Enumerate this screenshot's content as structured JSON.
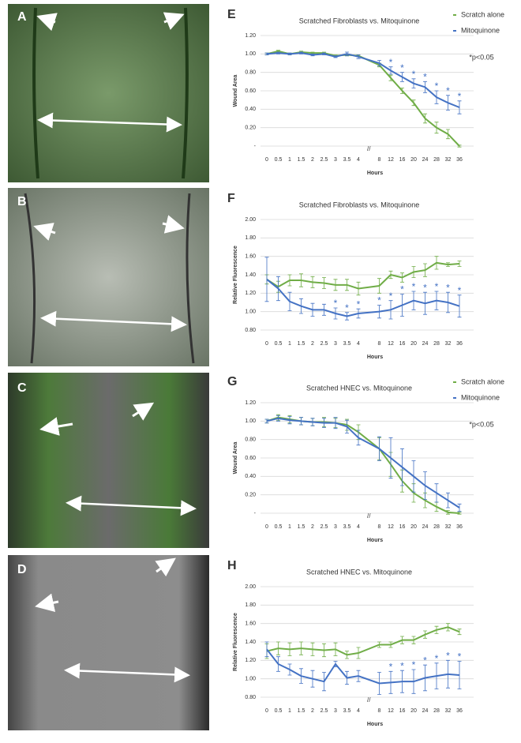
{
  "images": [
    {
      "label": "A"
    },
    {
      "label": "B"
    },
    {
      "label": "C"
    },
    {
      "label": "D"
    }
  ],
  "chart_data": [
    {
      "type": "line",
      "panel": "E",
      "title": "Scratched Fibroblasts vs. Mitoquinone",
      "xlabel": "Hours",
      "ylabel": "Wound Area",
      "axis_break": "//",
      "note": "*p<0.05",
      "legend": true,
      "grid": true,
      "significance_marker": "*",
      "categories": [
        "0",
        "0.5",
        "1",
        "1.5",
        "2",
        "2.5",
        "3",
        "3.5",
        "4",
        "8",
        "12",
        "16",
        "20",
        "24",
        "28",
        "32",
        "36"
      ],
      "ylim": [
        0,
        1.2
      ],
      "yticks": [
        {
          "value": 0,
          "label": "-"
        },
        {
          "value": 0.2,
          "label": "0.20"
        },
        {
          "value": 0.4,
          "label": "0.40"
        },
        {
          "value": 0.6,
          "label": "0.60"
        },
        {
          "value": 0.8,
          "label": "0.80"
        },
        {
          "value": 1,
          "label": "1.00"
        },
        {
          "value": 1.2,
          "label": "1.20"
        }
      ],
      "series": [
        {
          "name": "Scratch alone",
          "color": "#70ad47",
          "values": [
            1.0,
            1.03,
            1.0,
            1.02,
            1.01,
            1.01,
            0.98,
            0.99,
            0.98,
            0.88,
            0.74,
            0.6,
            0.47,
            0.3,
            0.2,
            0.13,
            0.0
          ],
          "errors": [
            0.01,
            0.01,
            0.01,
            0.01,
            0.01,
            0.01,
            0.01,
            0.01,
            0.01,
            0.02,
            0.03,
            0.03,
            0.03,
            0.05,
            0.06,
            0.05,
            0.01
          ]
        },
        {
          "name": "Mitoquinone",
          "color": "#4472c4",
          "values": [
            1.0,
            1.01,
            1.0,
            1.01,
            0.99,
            1.0,
            0.97,
            1.0,
            0.97,
            0.9,
            0.82,
            0.75,
            0.68,
            0.64,
            0.53,
            0.47,
            0.42
          ],
          "errors": [
            0.01,
            0.01,
            0.01,
            0.01,
            0.01,
            0.01,
            0.01,
            0.02,
            0.02,
            0.03,
            0.04,
            0.05,
            0.05,
            0.06,
            0.07,
            0.08,
            0.07
          ],
          "significant": [
            false,
            false,
            false,
            false,
            false,
            false,
            false,
            false,
            false,
            false,
            true,
            true,
            true,
            true,
            true,
            true,
            true
          ]
        }
      ]
    },
    {
      "type": "line",
      "panel": "F",
      "title": "Scratched Fibroblasts vs. Mitoquinone",
      "xlabel": "Hours",
      "ylabel": "Relative Fluorescence",
      "legend": false,
      "grid": true,
      "significance_marker": "*",
      "categories": [
        "0",
        "0.5",
        "1",
        "1.5",
        "2",
        "2.5",
        "3",
        "3.5",
        "4",
        "8",
        "12",
        "16",
        "20",
        "24",
        "28",
        "32",
        "36"
      ],
      "ylim": [
        0.8,
        2.0
      ],
      "yticks": [
        {
          "value": 0.8,
          "label": "0.80"
        },
        {
          "value": 1,
          "label": "1.00"
        },
        {
          "value": 1.2,
          "label": "1.20"
        },
        {
          "value": 1.4,
          "label": "1.40"
        },
        {
          "value": 1.6,
          "label": "1.60"
        },
        {
          "value": 1.8,
          "label": "1.80"
        },
        {
          "value": 2,
          "label": "2.00"
        }
      ],
      "series": [
        {
          "color": "#70ad47",
          "values": [
            1.35,
            1.27,
            1.34,
            1.34,
            1.32,
            1.31,
            1.29,
            1.29,
            1.25,
            1.28,
            1.4,
            1.37,
            1.43,
            1.45,
            1.53,
            1.51,
            1.52
          ],
          "errors": [
            0.05,
            0.06,
            0.06,
            0.07,
            0.06,
            0.06,
            0.06,
            0.06,
            0.07,
            0.08,
            0.04,
            0.05,
            0.06,
            0.07,
            0.07,
            0.02,
            0.03
          ]
        },
        {
          "color": "#4472c4",
          "values": [
            1.35,
            1.25,
            1.11,
            1.06,
            1.02,
            1.02,
            0.98,
            0.95,
            0.98,
            1.0,
            1.02,
            1.07,
            1.12,
            1.09,
            1.12,
            1.1,
            1.06
          ],
          "errors": [
            0.24,
            0.13,
            0.1,
            0.08,
            0.07,
            0.06,
            0.06,
            0.04,
            0.05,
            0.07,
            0.1,
            0.12,
            0.1,
            0.12,
            0.1,
            0.11,
            0.12
          ],
          "significant": [
            false,
            false,
            false,
            false,
            false,
            false,
            true,
            true,
            true,
            true,
            true,
            true,
            true,
            true,
            true,
            true,
            true
          ]
        }
      ]
    },
    {
      "type": "line",
      "panel": "G",
      "title": "Scratched HNEC vs. Mitoquinone",
      "xlabel": "Hours",
      "ylabel": "Wound Area",
      "axis_break": "//",
      "note": "*p<0.05",
      "legend": true,
      "grid": true,
      "categories": [
        "0",
        "0.5",
        "1",
        "1.5",
        "2",
        "2.5",
        "3",
        "3.5",
        "4",
        "8",
        "12",
        "16",
        "20",
        "24",
        "28",
        "32",
        "36"
      ],
      "ylim": [
        0,
        1.2
      ],
      "yticks": [
        {
          "value": 0,
          "label": "-"
        },
        {
          "value": 0.2,
          "label": "0.20"
        },
        {
          "value": 0.4,
          "label": "0.40"
        },
        {
          "value": 0.6,
          "label": "0.60"
        },
        {
          "value": 0.8,
          "label": "0.80"
        },
        {
          "value": 1,
          "label": "1.00"
        },
        {
          "value": 1.2,
          "label": "1.20"
        }
      ],
      "series": [
        {
          "name": "Scratch alone",
          "color": "#70ad47",
          "values": [
            1.0,
            1.04,
            1.02,
            1.0,
            0.99,
            0.99,
            0.98,
            0.96,
            0.88,
            0.7,
            0.53,
            0.35,
            0.22,
            0.14,
            0.07,
            0.01,
            0.0
          ],
          "errors": [
            0.02,
            0.03,
            0.04,
            0.04,
            0.04,
            0.05,
            0.05,
            0.06,
            0.08,
            0.12,
            0.13,
            0.12,
            0.1,
            0.08,
            0.05,
            0.02,
            0.01
          ]
        },
        {
          "name": "Mitoquinone",
          "color": "#4472c4",
          "values": [
            1.0,
            1.03,
            1.01,
            1.0,
            0.99,
            0.98,
            0.98,
            0.94,
            0.82,
            0.7,
            0.6,
            0.5,
            0.4,
            0.3,
            0.22,
            0.14,
            0.06
          ],
          "errors": [
            0.02,
            0.03,
            0.04,
            0.04,
            0.04,
            0.05,
            0.06,
            0.07,
            0.08,
            0.13,
            0.22,
            0.2,
            0.17,
            0.15,
            0.1,
            0.08,
            0.04
          ]
        }
      ]
    },
    {
      "type": "line",
      "panel": "H",
      "title": "Scratched HNEC vs. Mitoquinone",
      "xlabel": "Hours",
      "ylabel": "Relative Fluorescence",
      "axis_break": "//",
      "legend": false,
      "grid": true,
      "significance_marker": "*",
      "categories": [
        "0",
        "0.5",
        "1",
        "1.5",
        "2",
        "2.5",
        "3",
        "3.5",
        "4",
        "8",
        "12",
        "16",
        "20",
        "24",
        "28",
        "32",
        "36"
      ],
      "ylim": [
        0.8,
        2.0
      ],
      "yticks": [
        {
          "value": 0.8,
          "label": "0.80"
        },
        {
          "value": 1,
          "label": "1.00"
        },
        {
          "value": 1.2,
          "label": "1.20"
        },
        {
          "value": 1.4,
          "label": "1.40"
        },
        {
          "value": 1.6,
          "label": "1.60"
        },
        {
          "value": 1.8,
          "label": "1.80"
        },
        {
          "value": 2,
          "label": "2.00"
        }
      ],
      "series": [
        {
          "color": "#70ad47",
          "values": [
            1.3,
            1.33,
            1.32,
            1.33,
            1.32,
            1.31,
            1.32,
            1.26,
            1.28,
            1.37,
            1.37,
            1.42,
            1.42,
            1.48,
            1.53,
            1.56,
            1.51
          ],
          "errors": [
            0.08,
            0.07,
            0.07,
            0.07,
            0.07,
            0.07,
            0.07,
            0.04,
            0.06,
            0.03,
            0.03,
            0.04,
            0.04,
            0.04,
            0.04,
            0.04,
            0.03
          ]
        },
        {
          "color": "#4472c4",
          "values": [
            1.32,
            1.16,
            1.1,
            1.03,
            1.0,
            0.97,
            1.16,
            1.01,
            1.03,
            0.95,
            0.96,
            0.97,
            0.97,
            1.01,
            1.03,
            1.05,
            1.04
          ],
          "errors": [
            0.08,
            0.08,
            0.06,
            0.08,
            0.09,
            0.1,
            0.03,
            0.07,
            0.06,
            0.12,
            0.12,
            0.12,
            0.13,
            0.14,
            0.14,
            0.15,
            0.15
          ],
          "significant": [
            false,
            false,
            false,
            false,
            false,
            false,
            false,
            false,
            false,
            false,
            true,
            true,
            true,
            true,
            true,
            true,
            true
          ]
        }
      ]
    }
  ]
}
